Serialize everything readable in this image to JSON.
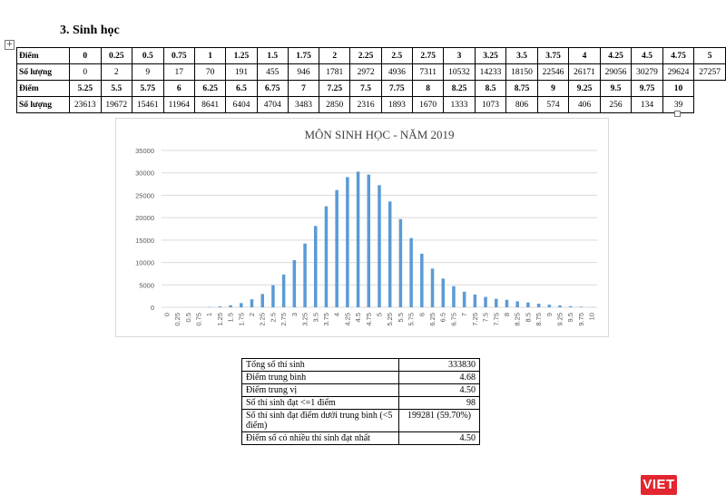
{
  "heading": "3.  Sinh học",
  "score_table": {
    "score_label": "Điểm",
    "count_label": "Số lượng",
    "row1_scores": [
      "0",
      "0.25",
      "0.5",
      "0.75",
      "1",
      "1.25",
      "1.5",
      "1.75",
      "2",
      "2.25",
      "2.5",
      "2.75",
      "3",
      "3.25",
      "3.5",
      "3.75",
      "4",
      "4.25",
      "4.5",
      "4.75",
      "5"
    ],
    "row1_counts": [
      "0",
      "2",
      "9",
      "17",
      "70",
      "191",
      "455",
      "946",
      "1781",
      "2972",
      "4936",
      "7311",
      "10532",
      "14233",
      "18150",
      "22546",
      "26171",
      "29056",
      "30279",
      "29624",
      "27257"
    ],
    "row2_scores": [
      "5.25",
      "5.5",
      "5.75",
      "6",
      "6.25",
      "6.5",
      "6.75",
      "7",
      "7.25",
      "7.5",
      "7.75",
      "8",
      "8.25",
      "8.5",
      "8.75",
      "9",
      "9.25",
      "9.5",
      "9.75",
      "10"
    ],
    "row2_counts": [
      "23613",
      "19672",
      "15461",
      "11964",
      "8641",
      "6404",
      "4704",
      "3483",
      "2850",
      "2316",
      "1893",
      "1670",
      "1333",
      "1073",
      "806",
      "574",
      "406",
      "256",
      "134",
      "39"
    ]
  },
  "chart_data": {
    "type": "bar",
    "title": "MÔN SINH HỌC - NĂM 2019",
    "xlabel": "",
    "ylabel": "",
    "ylim": [
      0,
      35000
    ],
    "yticks": [
      0,
      5000,
      10000,
      15000,
      20000,
      25000,
      30000,
      35000
    ],
    "grid": true,
    "color": "#5b9bd5",
    "categories": [
      "0",
      "0.25",
      "0.5",
      "0.75",
      "1",
      "1.25",
      "1.5",
      "1.75",
      "2",
      "2.25",
      "2.5",
      "2.75",
      "3",
      "3.25",
      "3.5",
      "3.75",
      "4",
      "4.25",
      "4.5",
      "4.75",
      "5",
      "5.25",
      "5.5",
      "5.75",
      "6",
      "6.25",
      "6.5",
      "6.75",
      "7",
      "7.25",
      "7.5",
      "7.75",
      "8",
      "8.25",
      "8.5",
      "8.75",
      "9",
      "9.25",
      "9.5",
      "9.75",
      "10"
    ],
    "values": [
      0,
      2,
      9,
      17,
      70,
      191,
      455,
      946,
      1781,
      2972,
      4936,
      7311,
      10532,
      14233,
      18150,
      22546,
      26171,
      29056,
      30279,
      29624,
      27257,
      23613,
      19672,
      15461,
      11964,
      8641,
      6404,
      4704,
      3483,
      2850,
      2316,
      1893,
      1670,
      1333,
      1073,
      806,
      574,
      406,
      256,
      134,
      39
    ]
  },
  "stats": [
    {
      "label": "Tổng số thí sinh",
      "value": "333830"
    },
    {
      "label": "Điểm trung bình",
      "value": "4.68"
    },
    {
      "label": "Điểm trung vị",
      "value": "4.50"
    },
    {
      "label": "Số thí sinh đạt <=1 điểm",
      "value": "98"
    },
    {
      "label": "Số thí sinh đạt điểm dưới trung bình (<5 điểm)",
      "value": "199281 (59.70%)"
    },
    {
      "label": "Điểm số có nhiều thí sinh đạt nhất",
      "value": "4.50"
    }
  ],
  "logo_text": "VIET"
}
